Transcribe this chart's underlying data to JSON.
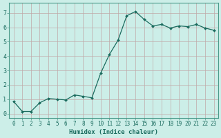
{
  "x": [
    0,
    1,
    2,
    3,
    4,
    5,
    6,
    7,
    8,
    9,
    10,
    11,
    12,
    13,
    14,
    15,
    16,
    17,
    18,
    19,
    20,
    21,
    22,
    23
  ],
  "y": [
    0.85,
    0.15,
    0.15,
    0.75,
    1.05,
    1.0,
    0.95,
    1.3,
    1.2,
    1.1,
    2.8,
    4.1,
    5.1,
    6.8,
    7.1,
    6.55,
    6.1,
    6.2,
    5.95,
    6.1,
    6.05,
    6.2,
    5.95,
    5.8
  ],
  "line_color": "#1a6b5e",
  "marker": "D",
  "marker_size": 2.0,
  "bg_color": "#cceee8",
  "grid_color": "#c0a8a8",
  "xlabel": "Humidex (Indice chaleur)",
  "xlim": [
    -0.5,
    23.5
  ],
  "ylim": [
    -0.3,
    7.7
  ],
  "yticks": [
    0,
    1,
    2,
    3,
    4,
    5,
    6,
    7
  ],
  "xticks": [
    0,
    1,
    2,
    3,
    4,
    5,
    6,
    7,
    8,
    9,
    10,
    11,
    12,
    13,
    14,
    15,
    16,
    17,
    18,
    19,
    20,
    21,
    22,
    23
  ],
  "xtick_labels": [
    "0",
    "1",
    "2",
    "3",
    "4",
    "5",
    "6",
    "7",
    "8",
    "9",
    "10",
    "11",
    "12",
    "13",
    "14",
    "15",
    "16",
    "17",
    "18",
    "19",
    "20",
    "21",
    "22",
    "23"
  ],
  "tick_color": "#1a6b5e",
  "label_fontsize": 6.5,
  "tick_fontsize": 5.5,
  "spine_color": "#4a9a8a",
  "linewidth": 0.9
}
